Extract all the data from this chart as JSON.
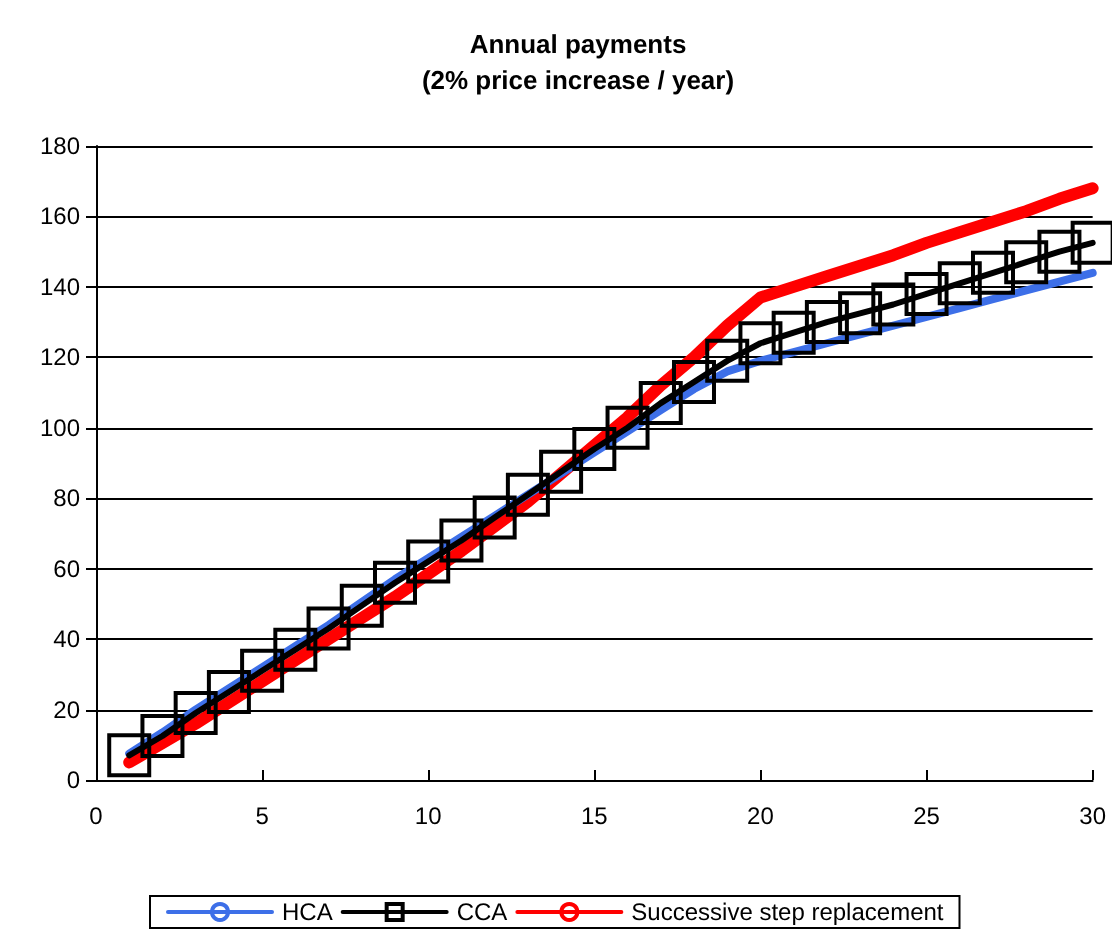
{
  "chart_data": {
    "type": "line",
    "title": "Annual payments\n(2% price increase / year)",
    "x": [
      1,
      2,
      3,
      4,
      5,
      6,
      7,
      8,
      9,
      10,
      11,
      12,
      13,
      14,
      15,
      16,
      17,
      18,
      19,
      20,
      21,
      22,
      23,
      24,
      25,
      26,
      27,
      28,
      29,
      30
    ],
    "series": [
      {
        "name": "HCA",
        "color": "#3d6fe8",
        "marker": "none",
        "values": [
          7.5,
          13.5,
          20,
          26,
          32,
          38,
          44,
          50.5,
          57,
          63,
          69,
          75,
          81,
          87,
          93,
          99,
          105,
          111,
          116,
          119,
          121.5,
          124,
          126.5,
          129,
          131.5,
          134,
          136.5,
          139,
          141.5,
          144
        ]
      },
      {
        "name": "CCA",
        "color": "#000000",
        "marker": "square",
        "values": [
          7,
          12.5,
          19,
          25,
          31,
          37,
          43,
          49.5,
          56,
          62,
          68,
          74.5,
          81,
          87.5,
          94,
          100,
          107,
          113,
          119,
          124,
          127,
          130,
          132.5,
          135,
          138,
          141,
          144,
          147,
          150,
          152.5
        ]
      },
      {
        "name": "Successive step replacement",
        "color": "#ff0000",
        "marker": "none",
        "values": [
          5,
          10.5,
          16,
          22,
          28,
          34,
          40,
          46,
          52,
          58.5,
          65,
          72,
          79,
          87,
          95,
          103,
          112,
          120,
          129,
          137,
          140,
          143,
          146,
          149,
          152.5,
          155.5,
          158.5,
          161.5,
          165,
          168
        ]
      }
    ],
    "xlim": [
      0,
      30
    ],
    "xticks": [
      0,
      5,
      10,
      15,
      20,
      25,
      30
    ],
    "ylim": [
      0,
      180
    ],
    "yticks": [
      0,
      20,
      40,
      60,
      80,
      100,
      120,
      140,
      160,
      180
    ],
    "grid": "y",
    "legend": "bottom"
  }
}
